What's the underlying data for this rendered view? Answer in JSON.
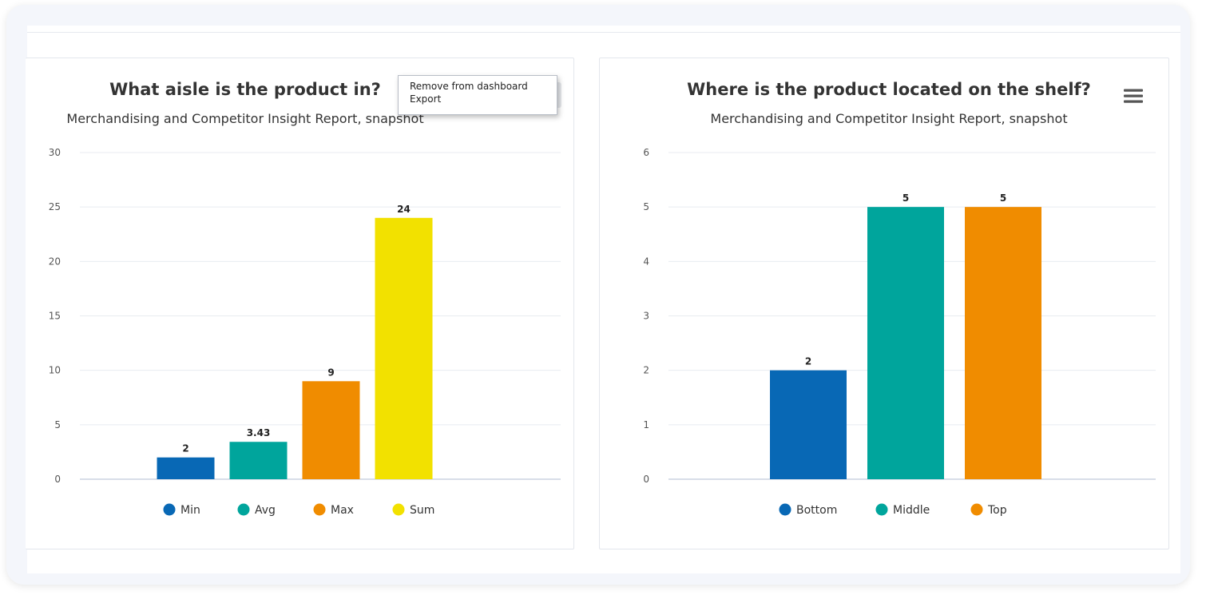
{
  "colors": {
    "blue": "#0868b5",
    "teal": "#00a59c",
    "orange": "#f08c00",
    "yellow": "#f2e100"
  },
  "chart_data": [
    {
      "type": "bar",
      "title": "What aisle is the product in?",
      "subtitle": "Merchandising and Competitor Insight Report, snapshot",
      "xlabel": "",
      "ylabel": "",
      "ylim": [
        0,
        30
      ],
      "yticks": [
        0,
        5,
        10,
        15,
        20,
        25,
        30
      ],
      "grid": true,
      "legend": "bottom-center",
      "categories": [
        "Min",
        "Avg",
        "Max",
        "Sum"
      ],
      "values": [
        2,
        3.43,
        9,
        24
      ],
      "data_labels": [
        "2",
        "3.43",
        "9",
        "24"
      ],
      "colors": [
        "#0868b5",
        "#00a59c",
        "#f08c00",
        "#f2e100"
      ]
    },
    {
      "type": "bar",
      "title": "Where is the product located on the shelf?",
      "subtitle": "Merchandising and Competitor Insight Report, snapshot",
      "xlabel": "",
      "ylabel": "",
      "ylim": [
        0,
        6
      ],
      "yticks": [
        0,
        1,
        2,
        3,
        4,
        5,
        6
      ],
      "grid": true,
      "legend": "bottom-center",
      "categories": [
        "Bottom",
        "Middle",
        "Top"
      ],
      "values": [
        2,
        5,
        5
      ],
      "data_labels": [
        "2",
        "5",
        "5"
      ],
      "colors": [
        "#0868b5",
        "#00a59c",
        "#f08c00"
      ]
    }
  ],
  "menu": {
    "items": [
      {
        "label": "Remove from dashboard"
      },
      {
        "label": "Export"
      }
    ],
    "icon": "hamburger-menu-icon"
  }
}
